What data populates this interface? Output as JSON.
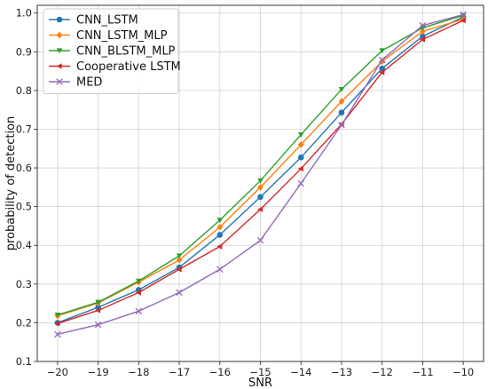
{
  "chart_data": {
    "type": "line",
    "xlabel": "SNR",
    "ylabel": "probability of detection",
    "x": [
      -20,
      -19,
      -18,
      -17,
      -16,
      -15,
      -14,
      -13,
      -12,
      -11,
      -10
    ],
    "xlim": [
      -20.5,
      -9.5
    ],
    "ylim": [
      0.1,
      1.02
    ],
    "xticks": [
      -20,
      -19,
      -18,
      -17,
      -16,
      -15,
      -14,
      -13,
      -12,
      -11,
      -10
    ],
    "yticks": [
      0.1,
      0.2,
      0.3,
      0.4,
      0.5,
      0.6,
      0.7,
      0.8,
      0.9,
      1.0
    ],
    "grid": true,
    "legend_position": "top-left",
    "series": [
      {
        "name": "CNN_LSTM",
        "color": "#1f77b4",
        "marker": "circle",
        "values": [
          0.2,
          0.24,
          0.285,
          0.343,
          0.427,
          0.525,
          0.627,
          0.743,
          0.857,
          0.94,
          0.99
        ]
      },
      {
        "name": "CNN_LSTM_MLP",
        "color": "#ff7f0e",
        "marker": "diamond",
        "values": [
          0.218,
          0.251,
          0.305,
          0.362,
          0.447,
          0.55,
          0.66,
          0.772,
          0.875,
          0.953,
          0.984
        ]
      },
      {
        "name": "CNN_BLSTM_MLP",
        "color": "#2ca02c",
        "marker": "triangle-down",
        "values": [
          0.22,
          0.253,
          0.308,
          0.373,
          0.465,
          0.567,
          0.686,
          0.803,
          0.903,
          0.962,
          0.994
        ]
      },
      {
        "name": "Cooperative LSTM",
        "color": "#d62728",
        "marker": "triangle-left",
        "values": [
          0.198,
          0.232,
          0.278,
          0.338,
          0.397,
          0.493,
          0.598,
          0.713,
          0.847,
          0.932,
          0.981
        ]
      },
      {
        "name": "MED",
        "color": "#9467bd",
        "marker": "x",
        "values": [
          0.17,
          0.195,
          0.23,
          0.278,
          0.338,
          0.413,
          0.56,
          0.711,
          0.879,
          0.968,
          0.996
        ]
      }
    ]
  }
}
